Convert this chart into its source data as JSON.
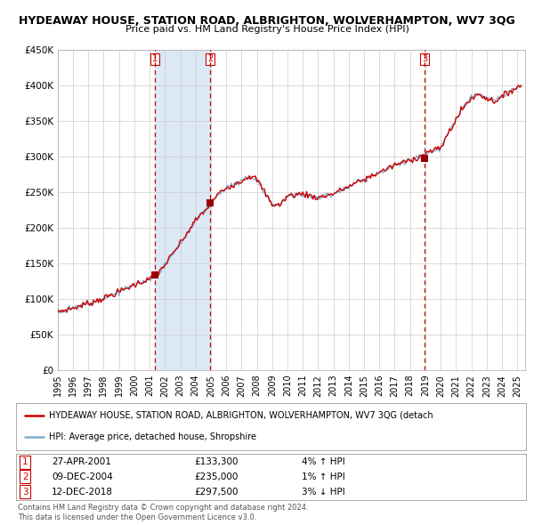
{
  "title": "HYDEAWAY HOUSE, STATION ROAD, ALBRIGHTON, WOLVERHAMPTON, WV7 3QG",
  "subtitle": "Price paid vs. HM Land Registry's House Price Index (HPI)",
  "title_fontsize": 9.0,
  "subtitle_fontsize": 8.0,
  "bg_color": "#FFFFFF",
  "plot_bg_color": "#FFFFFF",
  "grid_color": "#CCCCCC",
  "shaded_color": "#DCE9F5",
  "sale_line_color": "#CC0000",
  "hpi_line_color": "#7AADD0",
  "marker_color": "#990000",
  "dashed_line_color": "#CC0000",
  "ylim": [
    0,
    450000
  ],
  "yticks": [
    0,
    50000,
    100000,
    150000,
    200000,
    250000,
    300000,
    350000,
    400000,
    450000
  ],
  "ytick_labels": [
    "£0",
    "£50K",
    "£100K",
    "£150K",
    "£200K",
    "£250K",
    "£300K",
    "£350K",
    "£400K",
    "£450K"
  ],
  "xlim_start": 1995.0,
  "xlim_end": 2025.5,
  "xtick_years": [
    1995,
    1996,
    1997,
    1998,
    1999,
    2000,
    2001,
    2002,
    2003,
    2004,
    2005,
    2006,
    2007,
    2008,
    2009,
    2010,
    2011,
    2012,
    2013,
    2014,
    2015,
    2016,
    2017,
    2018,
    2019,
    2020,
    2021,
    2022,
    2023,
    2024,
    2025
  ],
  "sale_dates": [
    2001.32,
    2004.94,
    2018.95
  ],
  "sale_prices": [
    133300,
    235000,
    297500
  ],
  "sale_labels": [
    "1",
    "2",
    "3"
  ],
  "shaded_regions": [
    [
      2001.32,
      2004.94
    ]
  ],
  "legend_sale_label": "HYDEAWAY HOUSE, STATION ROAD, ALBRIGHTON, WOLVERHAMPTON, WV7 3QG (detach",
  "legend_hpi_label": "HPI: Average price, detached house, Shropshire",
  "table_rows": [
    {
      "num": "1",
      "date": "27-APR-2001",
      "price": "£133,300",
      "hpi": "4% ↑ HPI"
    },
    {
      "num": "2",
      "date": "09-DEC-2004",
      "price": "£235,000",
      "hpi": "1% ↑ HPI"
    },
    {
      "num": "3",
      "date": "12-DEC-2018",
      "price": "£297,500",
      "hpi": "3% ↓ HPI"
    }
  ],
  "footer": "Contains HM Land Registry data © Crown copyright and database right 2024.\nThis data is licensed under the Open Government Licence v3.0."
}
